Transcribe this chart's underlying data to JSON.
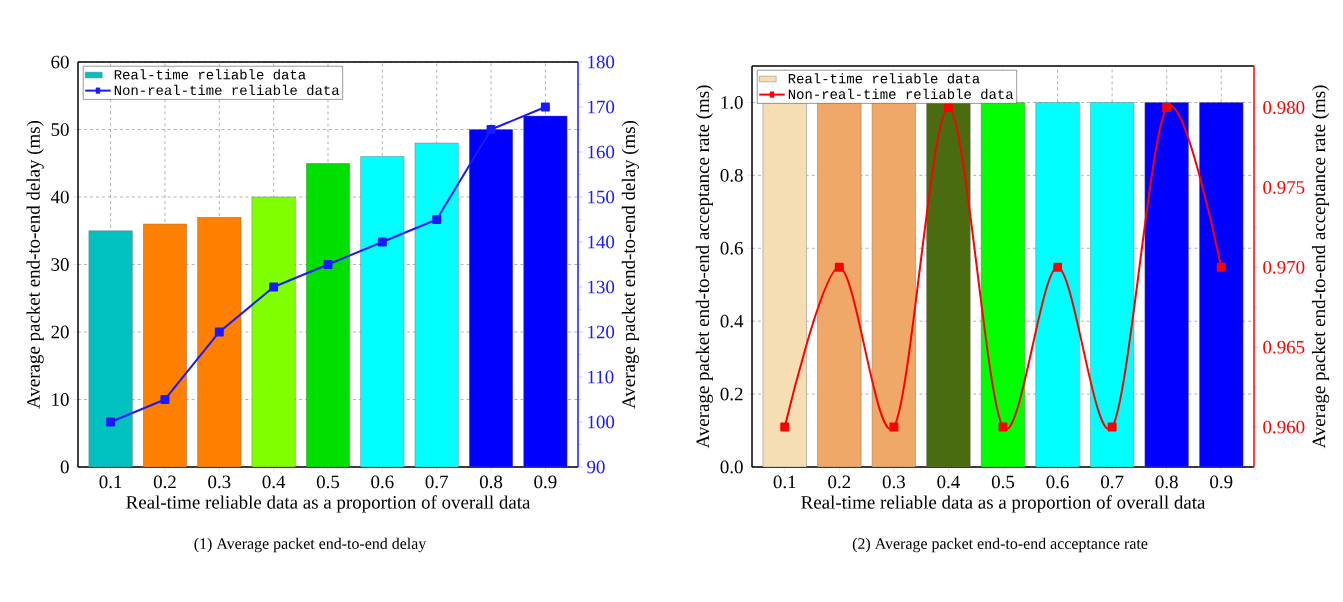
{
  "chart_data": [
    {
      "type": "bar",
      "categories": [
        "0.1",
        "0.2",
        "0.3",
        "0.4",
        "0.5",
        "0.6",
        "0.7",
        "0.8",
        "0.9"
      ],
      "xlabel": "Real-time reliable data as a proportion of overall data",
      "ylabel": "Average packet end-to-end delay (ms)",
      "y2label": "Average packet end-to-end delay (ms)",
      "series": [
        {
          "name": "Real-time reliable data",
          "colors": [
            "#00c0c0",
            "#ff8000",
            "#ff8000",
            "#80ff00",
            "#00e000",
            "#00ffff",
            "#00ffff",
            "#0000ff",
            "#0000ff"
          ],
          "values": [
            35,
            36,
            37,
            40,
            45,
            46,
            48,
            50,
            52
          ]
        },
        {
          "name": "Non-real-time reliable data",
          "type": "line",
          "axis": "y2",
          "color": "#1a1aff",
          "marker": "square",
          "line_style": "solid",
          "values": [
            100,
            105,
            120,
            130,
            135,
            140,
            145,
            165,
            170
          ]
        }
      ],
      "ylim": [
        0,
        60
      ],
      "yticks": [
        0,
        10,
        20,
        30,
        40,
        50,
        60
      ],
      "y2lim": [
        90,
        180
      ],
      "y2ticks": [
        90,
        100,
        110,
        120,
        130,
        140,
        150,
        160,
        170,
        180
      ],
      "grid": true,
      "legend": "top left",
      "annotations": [
        "(1) Average packet end-to-end delay"
      ]
    },
    {
      "type": "bar",
      "categories": [
        "0.1",
        "0.2",
        "0.3",
        "0.4",
        "0.5",
        "0.6",
        "0.7",
        "0.8",
        "0.9"
      ],
      "xlabel": "Real-time reliable data as a proportion of overall data",
      "ylabel": "Average packet end-to-end acceptance rate (ms)",
      "y2label": "Average packet end-to-end acceptance rate (ms)",
      "series": [
        {
          "name": "Real-time reliable data",
          "colors": [
            "#f5deb3",
            "#f0a868",
            "#f0a868",
            "#4a6b10",
            "#00ff00",
            "#00ffff",
            "#00ffff",
            "#0000ff",
            "#0000ff"
          ],
          "values": [
            1.0,
            1.0,
            1.0,
            1.0,
            1.0,
            1.0,
            1.0,
            1.0,
            1.0
          ]
        },
        {
          "name": "Non-real-time reliable data",
          "type": "line",
          "axis": "y2",
          "color": "#ff0000",
          "marker": "square",
          "line_style": "solid",
          "values": [
            0.96,
            0.97,
            0.96,
            0.98,
            0.96,
            0.97,
            0.96,
            0.98,
            0.97
          ]
        }
      ],
      "ylim": [
        0,
        1.1
      ],
      "yticks": [
        {
          "value": 0,
          "label": "0.0"
        },
        0.2,
        0.4,
        0.6,
        0.8,
        {
          "value": 1,
          "label": "1.0"
        }
      ],
      "y2lim": [
        0.9575,
        0.9826
      ],
      "y2ticks": [
        {
          "value": 0.96,
          "label": "0.960"
        },
        {
          "value": 0.965,
          "label": "0.965"
        },
        {
          "value": 0.97,
          "label": "0.970"
        },
        {
          "value": 0.975,
          "label": "0.975"
        },
        {
          "value": 0.98,
          "label": "0.980"
        }
      ],
      "grid": true,
      "legend": "top left",
      "annotations": [
        "(2) Average packet end-to-end acceptance rate"
      ]
    }
  ]
}
